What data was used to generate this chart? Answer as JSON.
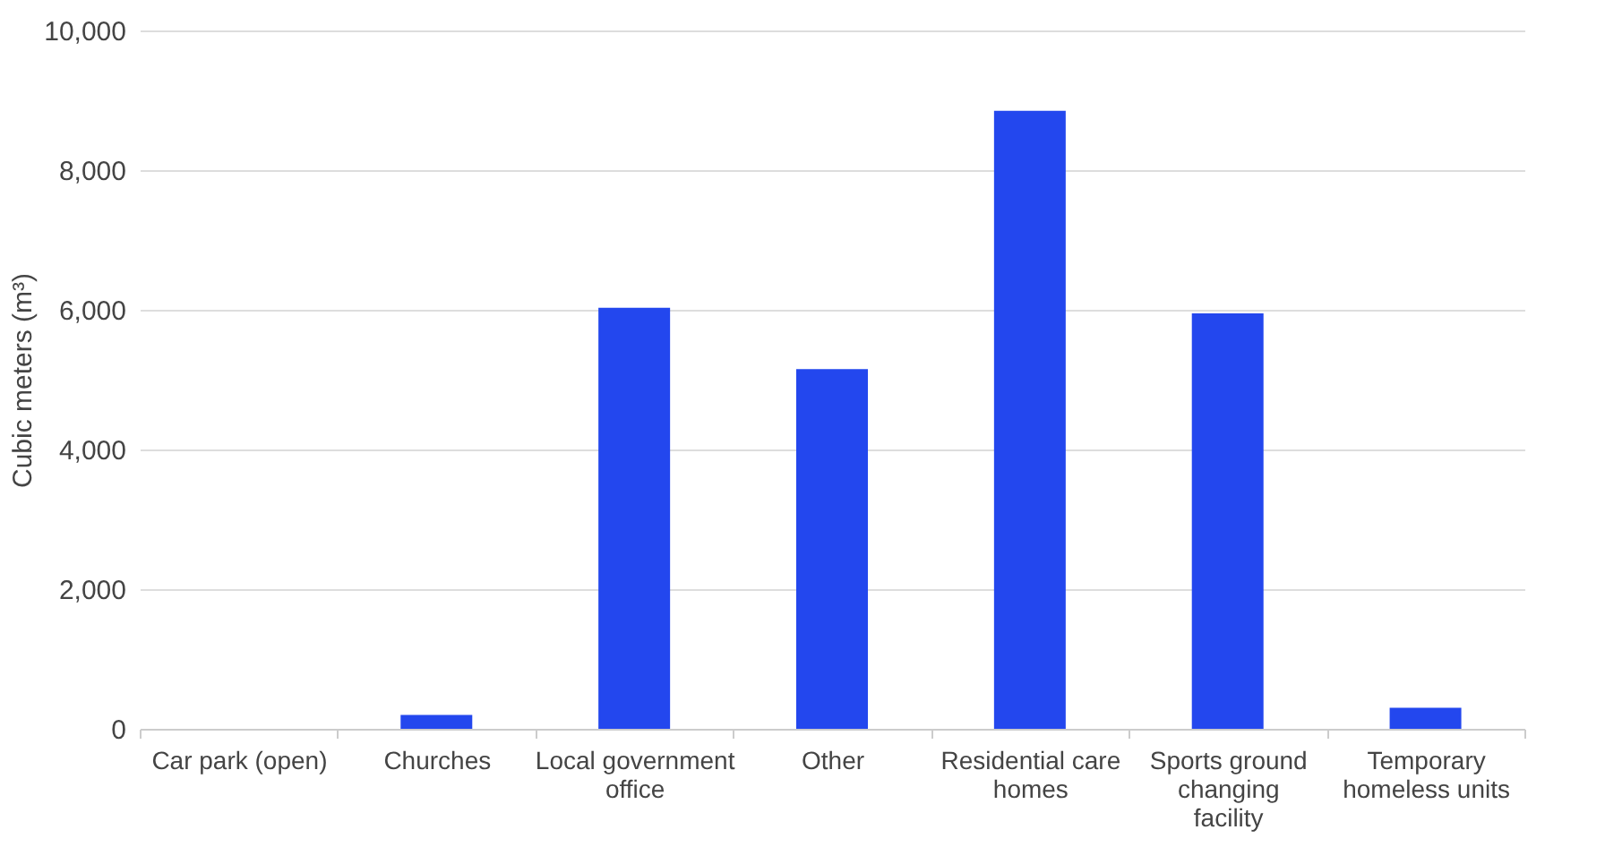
{
  "chart_data": {
    "type": "bar",
    "ylabel": "Cubic meters (m³)",
    "categories": [
      "Car park (open)",
      "Churches",
      "Local government office",
      "Other",
      "Residential care homes",
      "Sports ground changing facility",
      "Temporary homeless units"
    ],
    "values": [
      0,
      200,
      6030,
      5150,
      8850,
      5950,
      300
    ],
    "color": "#2347ee",
    "ylim": [
      0,
      10000
    ],
    "yticks": [
      0,
      {
        "value": 2000,
        "label": "2,000"
      },
      {
        "value": 4000,
        "label": "4,000"
      },
      {
        "value": 6000,
        "label": "6,000"
      },
      {
        "value": 8000,
        "label": "8,000"
      },
      {
        "value": 10000,
        "label": "10,000"
      }
    ],
    "grid": "y"
  }
}
